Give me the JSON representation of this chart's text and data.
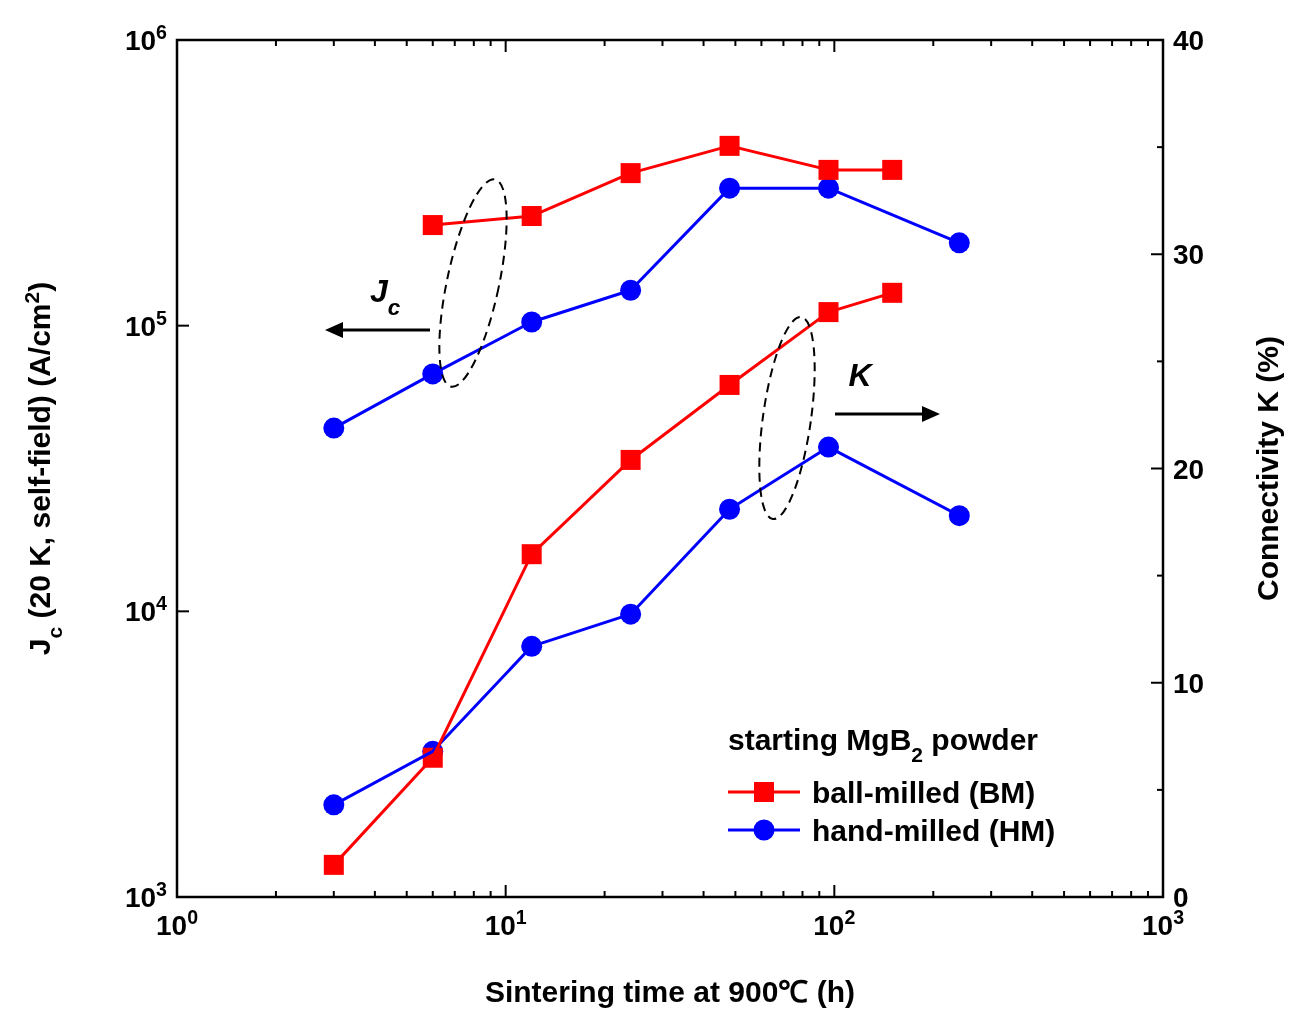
{
  "chart_data": {
    "type": "line",
    "xlabel": "Sintering time at 900℃ (h)",
    "ylabel": "J$_{c}$ (20 K, self-field) (A/cm$^{2}$)",
    "y2label": "Connectivity K (%)",
    "legend_title": "starting MgB$_{2}$ powder",
    "legend": "bottom right",
    "log": "xy",
    "grid": false,
    "annotations": [
      "J$_{c}$",
      "K"
    ],
    "xlim": [
      1,
      1000
    ],
    "xticks": [
      {
        "value": 1,
        "label": "10$^{0}$"
      },
      {
        "value": 2,
        "label": null
      },
      {
        "value": 3,
        "label": null
      },
      {
        "value": 4,
        "label": null
      },
      {
        "value": 5,
        "label": null
      },
      {
        "value": 6,
        "label": null
      },
      {
        "value": 7,
        "label": null
      },
      {
        "value": 8,
        "label": null
      },
      {
        "value": 9,
        "label": null
      },
      {
        "value": 10,
        "label": "10$^{1}$"
      },
      {
        "value": 20,
        "label": null
      },
      {
        "value": 30,
        "label": null
      },
      {
        "value": 40,
        "label": null
      },
      {
        "value": 50,
        "label": null
      },
      {
        "value": 60,
        "label": null
      },
      {
        "value": 70,
        "label": null
      },
      {
        "value": 80,
        "label": null
      },
      {
        "value": 90,
        "label": null
      },
      {
        "value": 100,
        "label": "10$^{2}$"
      },
      {
        "value": 200,
        "label": null
      },
      {
        "value": 300,
        "label": null
      },
      {
        "value": 400,
        "label": null
      },
      {
        "value": 500,
        "label": null
      },
      {
        "value": 600,
        "label": null
      },
      {
        "value": 700,
        "label": null
      },
      {
        "value": 800,
        "label": null
      },
      {
        "value": 900,
        "label": null
      },
      {
        "value": 1000,
        "label": "10$^{3}$"
      }
    ],
    "ylim": [
      1000,
      1000000
    ],
    "yticks": [
      {
        "value": 1000,
        "label": "10$^{3}$"
      },
      {
        "value": 10000,
        "label": "10$^{4}$"
      },
      {
        "value": 100000,
        "label": "10$^{5}$"
      },
      {
        "value": 1000000,
        "label": "10$^{6}$"
      }
    ],
    "y2lim": [
      0,
      40
    ],
    "y2ticks": [
      0,
      {
        "value": 5,
        "label": null
      },
      10,
      {
        "value": 15,
        "label": null
      },
      20,
      {
        "value": 25,
        "label": null
      },
      30,
      {
        "value": 35,
        "label": null
      },
      40
    ],
    "series": [
      {
        "name": "ball-milled (BM)",
        "color": "#ff0000",
        "marker": "square",
        "x": [
          6,
          12,
          24,
          48,
          96,
          150
        ],
        "values": [
          225000,
          242000,
          342000,
          426000,
          351000,
          351000
        ]
      },
      {
        "name": "hand-milled (HM)",
        "color": "#0000ff",
        "marker": "circle",
        "x": [
          3,
          6,
          12,
          24,
          48,
          96,
          240
        ],
        "values": [
          43800,
          67800,
          103000,
          133000,
          303000,
          303000,
          195000
        ]
      },
      {
        "color": "#ff0000",
        "marker": "square",
        "axis": "y2",
        "x": [
          3,
          6,
          12,
          24,
          48,
          96,
          150
        ],
        "values": [
          1.5,
          6.5,
          16.0,
          20.4,
          23.9,
          27.3,
          28.2
        ]
      },
      {
        "color": "#0000ff",
        "marker": "circle",
        "axis": "y2",
        "x": [
          3,
          6,
          12,
          24,
          48,
          96,
          240
        ],
        "values": [
          4.3,
          6.8,
          11.7,
          13.2,
          18.1,
          21.0,
          17.8
        ]
      }
    ]
  }
}
